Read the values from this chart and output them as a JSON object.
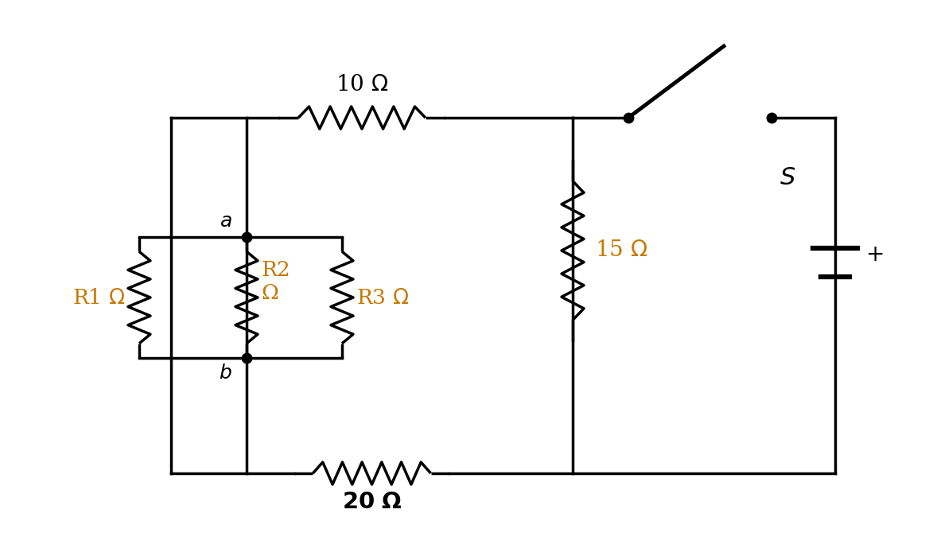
{
  "bg_color": "#ffffff",
  "line_color": "#000000",
  "orange": "#c87800",
  "lw": 2.5,
  "figsize": [
    11.73,
    7.04
  ],
  "dpi": 100
}
